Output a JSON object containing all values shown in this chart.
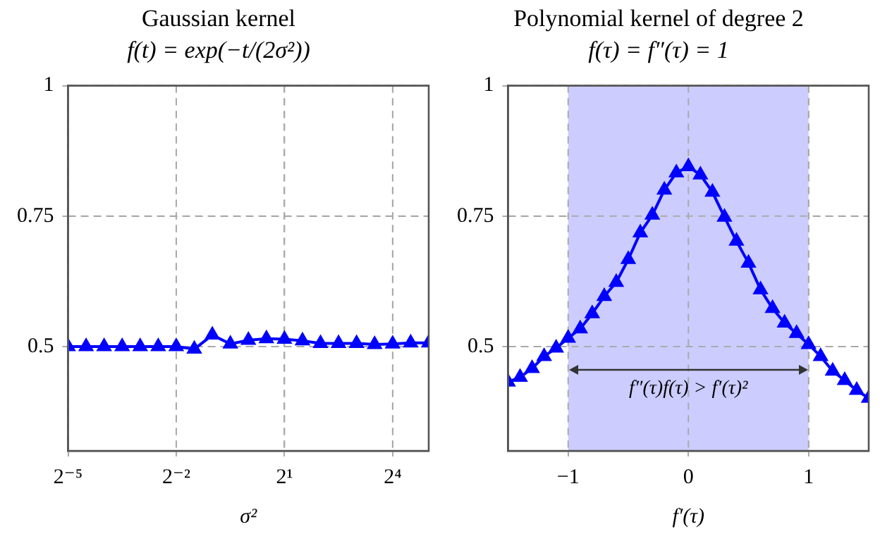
{
  "chart_data": [
    {
      "type": "line",
      "title": "Gaussian kernel",
      "subtitle": "f(t) = exp(−t/(2σ²))",
      "xlabel": "σ²",
      "log": "x",
      "marker": "triangle",
      "line_style": "solid",
      "grid": true,
      "legend": false,
      "xlim": [
        0.03125,
        32
      ],
      "xticks": [
        {
          "value": 0.03125,
          "label": "2⁻⁵"
        },
        {
          "value": 0.25,
          "label": "2⁻²"
        },
        {
          "value": 2,
          "label": "2¹"
        },
        {
          "value": 16,
          "label": "2⁴"
        }
      ],
      "ylim": [
        0.3,
        1
      ],
      "yticks": [
        0.5,
        0.75,
        1
      ],
      "series": [
        {
          "color": "#0000ff",
          "x": [
            0.03125,
            0.0442,
            0.0625,
            0.0884,
            0.125,
            0.1768,
            0.25,
            0.3536,
            0.5,
            0.7071,
            1,
            1.4142,
            2,
            2.8284,
            4,
            5.6569,
            8,
            11.314,
            16,
            22.627,
            32
          ],
          "values": [
            0.5,
            0.5,
            0.5,
            0.5,
            0.5,
            0.5,
            0.5,
            0.495,
            0.522,
            0.505,
            0.512,
            0.515,
            0.514,
            0.511,
            0.506,
            0.506,
            0.506,
            0.504,
            0.505,
            0.507,
            0.507
          ]
        }
      ]
    },
    {
      "type": "line",
      "title": "Polynomial kernel of degree 2",
      "subtitle": "f(τ) = f″(τ) = 1",
      "xlabel": "f′(τ)",
      "marker": "triangle",
      "line_style": "solid",
      "grid": true,
      "legend": false,
      "xlim": [
        -1.5,
        1.5
      ],
      "xticks": [
        -1,
        0,
        1
      ],
      "ylim": [
        0.3,
        1
      ],
      "yticks": [
        0.5,
        0.75,
        1
      ],
      "bands": [
        {
          "axis": "x",
          "from": -1,
          "to": 1,
          "label": "f″(τ)f(τ) > f′(τ)²",
          "color": "#ccccff"
        }
      ],
      "series": [
        {
          "color": "#0000ff",
          "x": [
            -1.5,
            -1.4,
            -1.3,
            -1.2,
            -1.1,
            -1,
            -0.9,
            -0.8,
            -0.7,
            -0.6,
            -0.5,
            -0.4,
            -0.3,
            -0.2,
            -0.1,
            0,
            0.1,
            0.2,
            0.3,
            0.4,
            0.5,
            0.6,
            0.7,
            0.8,
            0.9,
            1,
            1.1,
            1.2,
            1.3,
            1.4,
            1.5
          ],
          "values": [
            0.432,
            0.441,
            0.458,
            0.481,
            0.497,
            0.516,
            0.534,
            0.563,
            0.596,
            0.623,
            0.667,
            0.718,
            0.752,
            0.8,
            0.833,
            0.845,
            0.829,
            0.796,
            0.748,
            0.702,
            0.66,
            0.609,
            0.573,
            0.545,
            0.525,
            0.504,
            0.481,
            0.453,
            0.435,
            0.416,
            0.401
          ]
        }
      ]
    }
  ]
}
